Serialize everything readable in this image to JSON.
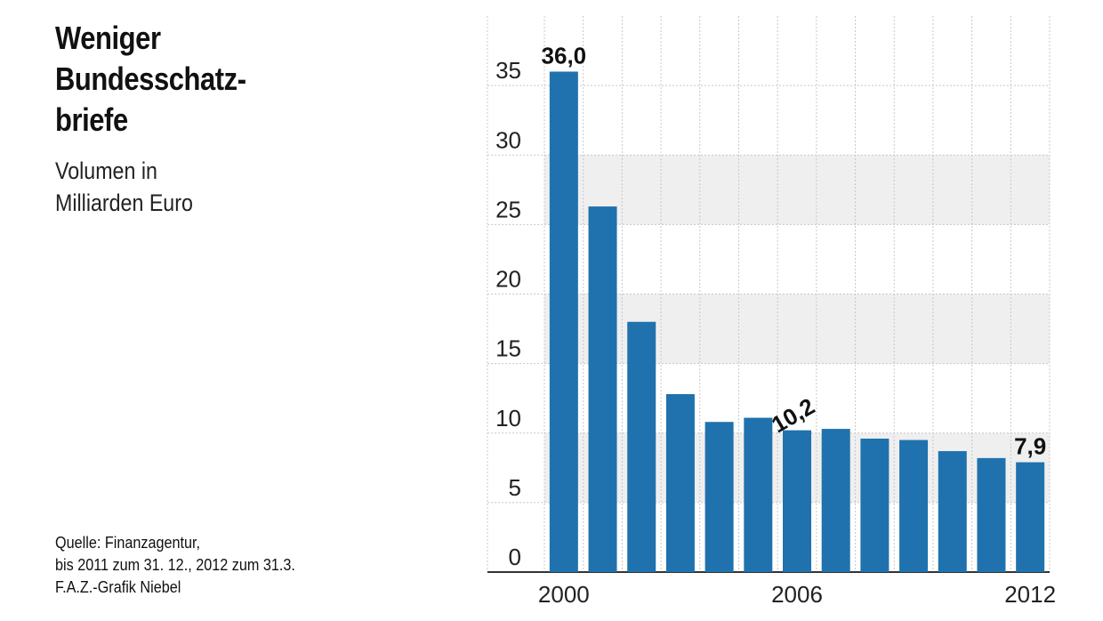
{
  "title_lines": [
    "Weniger",
    "Bundesschatz-",
    "briefe"
  ],
  "subtitle_lines": [
    "Volumen in",
    "Milliarden Euro"
  ],
  "source_lines": [
    "Quelle: Finanzagentur,",
    "bis 2011 zum 31. 12., 2012 zum 31.3.",
    "F.A.Z.-Grafik Niebel"
  ],
  "colors": {
    "bar": "#1f72ad",
    "band": "#efefef",
    "grid": "#c8c8c8"
  },
  "chart_data": {
    "type": "bar",
    "title": "Weniger Bundesschatzbriefe",
    "subtitle": "Volumen in Milliarden Euro",
    "categories": [
      "2000",
      "2001",
      "2002",
      "2003",
      "2004",
      "2005",
      "2006",
      "2007",
      "2008",
      "2009",
      "2010",
      "2011",
      "2012"
    ],
    "values": [
      36.0,
      26.3,
      18.0,
      12.8,
      10.8,
      11.1,
      10.2,
      10.3,
      9.6,
      9.5,
      8.7,
      8.2,
      7.9
    ],
    "data_labels": [
      {
        "index": 0,
        "text": "36,0"
      },
      {
        "index": 6,
        "text": "10,2"
      },
      {
        "index": 12,
        "text": "7,9"
      }
    ],
    "x_tick_labels": [
      {
        "index": 0,
        "text": "2000"
      },
      {
        "index": 6,
        "text": "2006"
      },
      {
        "index": 12,
        "text": "2012"
      }
    ],
    "y_ticks": [
      0,
      5,
      10,
      15,
      20,
      25,
      30,
      35
    ],
    "y_tick_labels": [
      "0",
      "5",
      "10",
      "15",
      "20",
      "25",
      "30",
      "35"
    ],
    "ylim": [
      0,
      40
    ],
    "xlabel": "",
    "ylabel": "",
    "grid": true
  }
}
